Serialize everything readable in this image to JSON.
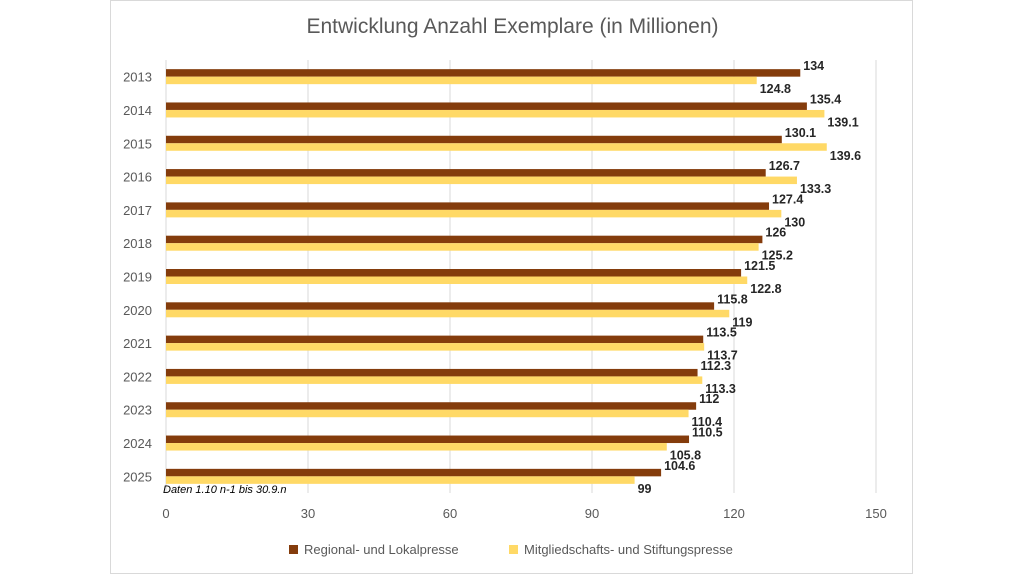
{
  "chart_data": {
    "type": "bar",
    "orientation": "horizontal",
    "title": "Entwicklung Anzahl Exemplare (in Millionen)",
    "note": "Daten 1.10 n-1 bis 30.9.n",
    "categories": [
      "2013",
      "2014",
      "2015",
      "2016",
      "2017",
      "2018",
      "2019",
      "2020",
      "2021",
      "2022",
      "2023",
      "2024",
      "2025"
    ],
    "series": [
      {
        "name": "Regional- und Lokalpresse",
        "color": "#843c0c",
        "values": [
          134,
          135.4,
          130.1,
          126.7,
          127.4,
          126,
          121.5,
          115.8,
          113.5,
          112.3,
          112,
          110.5,
          104.6
        ],
        "labels": [
          "134",
          "135.4",
          "130.1",
          "126.7",
          "127.4",
          "126",
          "121.5",
          "115.8",
          "113.5",
          "112.3",
          "112",
          "110.5",
          "104.6"
        ]
      },
      {
        "name": "Mitgliedschafts- und Stiftungspresse",
        "color": "#ffd966",
        "values": [
          124.8,
          139.1,
          139.6,
          133.3,
          130,
          125.2,
          122.8,
          119,
          113.7,
          113.3,
          110.4,
          105.8,
          99
        ],
        "labels": [
          "124.8",
          "139.1",
          "139.6",
          "133.3",
          "130",
          "125.2",
          "122.8",
          "119",
          "113.7",
          "113.3",
          "110.4",
          "105.8",
          "99"
        ]
      }
    ],
    "xlim": [
      0,
      150
    ],
    "xticks": [
      "0",
      "30",
      "60",
      "90",
      "120",
      "150"
    ],
    "xtick_values": [
      0,
      30,
      60,
      90,
      120,
      150
    ],
    "grid": true,
    "legend_position": "bottom"
  }
}
